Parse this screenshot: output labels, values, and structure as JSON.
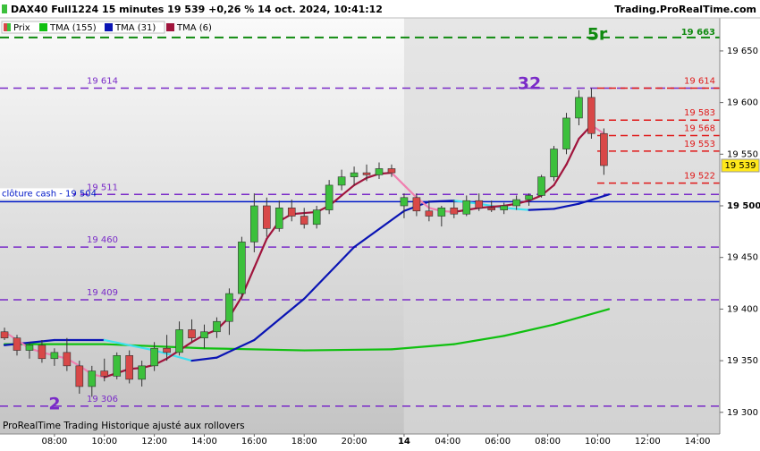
{
  "chart_data": {
    "type": "candlestick",
    "title": "DAX40 Full1224 15 minutes 19 539 +0,26 % 14 oct. 2024, 10:41:12",
    "source": "Trading.ProRealTime.com",
    "footer": "ProRealTime Trading  Historique ajusté aux rollovers",
    "price_name": "Prix",
    "up_color": "#3cc03c",
    "down_color": "#d84848",
    "xlim": [
      5.82,
      34.64
    ],
    "ylim": [
      19279,
      19682
    ],
    "xticks": [
      {
        "value": 8,
        "label": "08:00"
      },
      {
        "value": 10,
        "label": "10:00"
      },
      {
        "value": 12,
        "label": "12:00"
      },
      {
        "value": 14,
        "label": "14:00"
      },
      {
        "value": 16,
        "label": "16:00"
      },
      {
        "value": 18,
        "label": "18:00"
      },
      {
        "value": 20,
        "label": "20:00"
      },
      {
        "value": 22,
        "label": "14"
      },
      {
        "value": 23.75,
        "label": "04:00"
      },
      {
        "value": 25.75,
        "label": "06:00"
      },
      {
        "value": 27.75,
        "label": "08:00"
      },
      {
        "value": 29.75,
        "label": "10:00"
      },
      {
        "value": 31.75,
        "label": "12:00"
      },
      {
        "value": 33.75,
        "label": "14:00"
      }
    ],
    "yticks": [
      {
        "value": 19300,
        "label": "19 300"
      },
      {
        "value": 19350,
        "label": "19 350"
      },
      {
        "value": 19400,
        "label": "19 400"
      },
      {
        "value": 19450,
        "label": "19 450"
      },
      {
        "value": 19500,
        "label": "19 500"
      },
      {
        "value": 19550,
        "label": "19 550"
      },
      {
        "value": 19600,
        "label": "19 600"
      },
      {
        "value": 19650,
        "label": "19 650"
      }
    ],
    "day_break": 22,
    "x": [
      6,
      6.5,
      7,
      7.5,
      8,
      8.5,
      9,
      9.5,
      10,
      10.5,
      11,
      11.5,
      12,
      12.5,
      13,
      13.5,
      14,
      14.5,
      15,
      15.5,
      16,
      16.5,
      17,
      17.5,
      18,
      18.5,
      19,
      19.5,
      20,
      20.5,
      21,
      21.5,
      22,
      22.5,
      23,
      23.5,
      24,
      24.5,
      25,
      25.5,
      26,
      26.5,
      27,
      27.5,
      28,
      28.5,
      29,
      29.5,
      30
    ],
    "candles": [
      [
        19378,
        19382,
        19370,
        19372
      ],
      [
        19372,
        19375,
        19355,
        19360
      ],
      [
        19360,
        19368,
        19352,
        19365
      ],
      [
        19365,
        19370,
        19348,
        19352
      ],
      [
        19352,
        19362,
        19345,
        19358
      ],
      [
        19358,
        19372,
        19340,
        19345
      ],
      [
        19345,
        19350,
        19318,
        19325
      ],
      [
        19325,
        19345,
        19315,
        19340
      ],
      [
        19340,
        19352,
        19330,
        19335
      ],
      [
        19335,
        19358,
        19332,
        19355
      ],
      [
        19355,
        19360,
        19328,
        19332
      ],
      [
        19332,
        19350,
        19325,
        19345
      ],
      [
        19345,
        19368,
        19340,
        19362
      ],
      [
        19362,
        19375,
        19350,
        19358
      ],
      [
        19358,
        19388,
        19355,
        19380
      ],
      [
        19380,
        19390,
        19368,
        19372
      ],
      [
        19372,
        19385,
        19362,
        19378
      ],
      [
        19378,
        19392,
        19372,
        19388
      ],
      [
        19388,
        19420,
        19375,
        19415
      ],
      [
        19415,
        19470,
        19410,
        19465
      ],
      [
        19465,
        19512,
        19455,
        19500
      ],
      [
        19500,
        19508,
        19470,
        19478
      ],
      [
        19478,
        19505,
        19475,
        19498
      ],
      [
        19498,
        19506,
        19485,
        19490
      ],
      [
        19490,
        19498,
        19478,
        19482
      ],
      [
        19482,
        19500,
        19478,
        19496
      ],
      [
        19496,
        19525,
        19492,
        19520
      ],
      [
        19520,
        19535,
        19515,
        19528
      ],
      [
        19528,
        19538,
        19520,
        19532
      ],
      [
        19532,
        19540,
        19524,
        19530
      ],
      [
        19530,
        19542,
        19526,
        19536
      ],
      [
        19536,
        19540,
        19528,
        19532
      ],
      [
        19500,
        19512,
        19488,
        19508
      ],
      [
        19508,
        19512,
        19490,
        19495
      ],
      [
        19495,
        19505,
        19485,
        19490
      ],
      [
        19490,
        19500,
        19480,
        19498
      ],
      [
        19498,
        19506,
        19488,
        19492
      ],
      [
        19492,
        19510,
        19490,
        19505
      ],
      [
        19505,
        19512,
        19495,
        19498
      ],
      [
        19498,
        19505,
        19494,
        19496
      ],
      [
        19496,
        19503,
        19492,
        19500
      ],
      [
        19500,
        19510,
        19496,
        19506
      ],
      [
        19506,
        19512,
        19500,
        19510
      ],
      [
        19510,
        19530,
        19508,
        19528
      ],
      [
        19528,
        19558,
        19524,
        19555
      ],
      [
        19555,
        19590,
        19550,
        19585
      ],
      [
        19585,
        19612,
        19578,
        19605
      ],
      [
        19605,
        19614,
        19565,
        19570
      ],
      [
        19570,
        19575,
        19530,
        19539
      ]
    ],
    "series": [
      {
        "name": "TMA (155)",
        "color": "#10c010",
        "x": [
          6,
          10,
          14,
          18,
          21.5,
          24,
          26,
          28,
          30.2
        ],
        "values": [
          19366,
          19366,
          19362,
          19360,
          19361,
          19366,
          19374,
          19385,
          19400
        ]
      },
      {
        "name": "TMA (31)",
        "color": "#0a14b4",
        "color_down": "#40e0f0",
        "x": [
          6,
          8,
          10,
          12,
          13.5,
          14.5,
          16,
          18,
          20,
          22,
          23,
          24,
          25,
          26,
          27,
          28,
          29,
          30.2
        ],
        "values": [
          19365,
          19370,
          19370,
          19360,
          19350,
          19353,
          19370,
          19410,
          19460,
          19495,
          19504,
          19505,
          19502,
          19498,
          19496,
          19497,
          19502,
          19511
        ]
      },
      {
        "name": "TMA (6)",
        "color": "#a0143c",
        "color_down": "#f080b0",
        "values": [
          19378,
          19370,
          19362,
          19358,
          19355,
          19352,
          19345,
          19337,
          19334,
          19338,
          19342,
          19343,
          19346,
          19352,
          19360,
          19368,
          19375,
          19380,
          19392,
          19412,
          19440,
          19468,
          19485,
          19492,
          19493,
          19494,
          19500,
          19510,
          19520,
          19527,
          19531,
          19532,
          19520,
          19508,
          19498,
          19495,
          19494,
          19496,
          19498,
          19499,
          19500,
          19502,
          19505,
          19510,
          19520,
          19540,
          19565,
          19578,
          19570
        ]
      }
    ],
    "levels": [
      {
        "value": 19614,
        "label": "19 614"
      },
      {
        "value": 19511,
        "label": "19 511"
      },
      {
        "value": 19460,
        "label": "19 460"
      },
      {
        "value": 19409,
        "label": "19 409"
      },
      {
        "value": 19306,
        "label": "19 306"
      }
    ],
    "level_color": "#7a2bc8",
    "target": {
      "value": 19663,
      "label": "19 663",
      "color": "#108a10"
    },
    "right_levels": [
      {
        "value": 19614,
        "label": "19 614"
      },
      {
        "value": 19583,
        "label": "19 583"
      },
      {
        "value": 19568,
        "label": "19 568"
      },
      {
        "value": 19553,
        "label": "19 553"
      },
      {
        "value": 19522,
        "label": "19 522"
      }
    ],
    "right_level_color": "#e01818",
    "cash_close": {
      "value": 19504,
      "label": "clôture cash -  19 504",
      "color": "#0018c8"
    },
    "last_price": {
      "value": 19539,
      "label": "19 539"
    },
    "annotations": {
      "wave_5": "5r",
      "wave_3": "32",
      "wave_2": "2"
    }
  }
}
